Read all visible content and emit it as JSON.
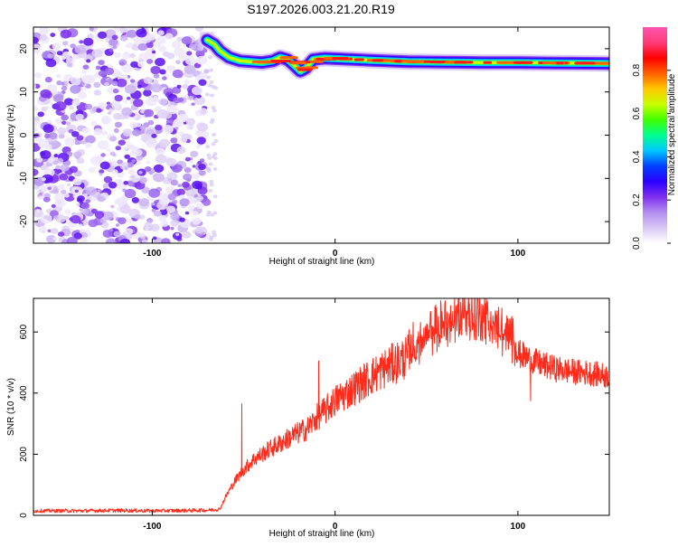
{
  "title": "S197.2026.003.21.20.R19",
  "chart_data": [
    {
      "type": "heatmap",
      "title": "S197.2026.003.21.20.R19",
      "xlabel": "Height of straight line (km)",
      "ylabel": "Frequency (Hz)",
      "xlim": [
        -165,
        150
      ],
      "ylim": [
        -25,
        25
      ],
      "xticks": [
        -100,
        0,
        100
      ],
      "yticks": [
        -20,
        -10,
        0,
        10,
        20
      ],
      "colorbar": {
        "label": "Normalized spectral amplitude",
        "range": [
          0,
          1
        ],
        "ticks": [
          "0.0",
          "0.2",
          "0.4",
          "0.6",
          "0.8"
        ],
        "colors": [
          "#ffffff",
          "#d9c8f5",
          "#b48ef0",
          "#7f2ff0",
          "#2b00ff",
          "#0040ff",
          "#00c8ff",
          "#00ff90",
          "#40ff00",
          "#c8ff00",
          "#ffc800",
          "#ff6000",
          "#ff0000",
          "#ff3c78",
          "#ff55b0"
        ]
      },
      "ridge": {
        "x": [
          -70,
          -66,
          -63,
          -58,
          -52,
          -46,
          -40,
          -34,
          -30,
          -26,
          -22,
          -19,
          -16,
          -12,
          -6,
          0,
          10,
          20,
          40,
          60,
          80,
          100,
          120,
          150
        ],
        "freq": [
          22.0,
          21.0,
          19.5,
          18.0,
          17.2,
          17.0,
          16.8,
          17.2,
          18.0,
          17.5,
          16.0,
          14.8,
          15.5,
          17.5,
          17.8,
          17.7,
          17.5,
          17.3,
          17.0,
          16.9,
          16.8,
          16.8,
          16.7,
          16.6
        ]
      },
      "noise_region": {
        "x_max": -70
      }
    },
    {
      "type": "line",
      "xlabel": "Height of straight line (km)",
      "ylabel": "SNR (10 * v/v)",
      "xlim": [
        -165,
        150
      ],
      "ylim": [
        0,
        710
      ],
      "xticks": [
        -100,
        0,
        100
      ],
      "yticks": [
        0,
        200,
        400,
        600
      ],
      "series": [
        {
          "name": "SNR",
          "color": "#ff2a1a",
          "x": [
            -165,
            -140,
            -120,
            -100,
            -80,
            -70,
            -63,
            -60,
            -55,
            -50,
            -45,
            -40,
            -35,
            -30,
            -25,
            -20,
            -15,
            -10,
            -5,
            0,
            10,
            20,
            30,
            40,
            50,
            60,
            70,
            80,
            90,
            100,
            110,
            120,
            130,
            140,
            150
          ],
          "y": [
            15,
            15,
            16,
            15,
            16,
            17,
            20,
            60,
            110,
            150,
            180,
            200,
            220,
            235,
            255,
            270,
            285,
            320,
            345,
            375,
            415,
            455,
            490,
            520,
            555,
            600,
            630,
            625,
            575,
            530,
            500,
            480,
            470,
            465,
            455
          ]
        }
      ],
      "spikes": [
        {
          "x": -51,
          "y": 365
        },
        {
          "x": -9,
          "y": 505
        },
        {
          "x": 107,
          "y": 375
        }
      ]
    }
  ]
}
